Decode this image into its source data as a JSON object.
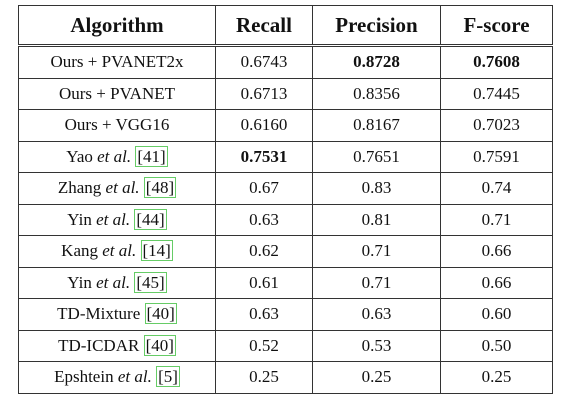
{
  "table": {
    "header": [
      "Algorithm",
      "Recall",
      "Precision",
      "F-score"
    ],
    "rows": [
      [
        {
          "text": "Ours + PVANET2x"
        },
        "0.6743",
        {
          "value": "0.8728",
          "bold": true
        },
        {
          "value": "0.7608",
          "bold": true
        }
      ],
      [
        {
          "text": "Ours + PVANET"
        },
        "0.6713",
        "0.8356",
        "0.7445"
      ],
      [
        {
          "text": "Ours + VGG16"
        },
        "0.6160",
        "0.8167",
        "0.7023"
      ],
      [
        {
          "text": "Yao",
          "italic": "et al.",
          "ref": "[41]"
        },
        {
          "value": "0.7531",
          "bold": true
        },
        "0.7651",
        "0.7591"
      ],
      [
        {
          "text": "Zhang",
          "italic": "et al.",
          "ref": "[48]"
        },
        "0.67",
        "0.83",
        "0.74"
      ],
      [
        {
          "text": "Yin",
          "italic": "et al.",
          "ref": "[44]"
        },
        "0.63",
        "0.81",
        "0.71"
      ],
      [
        {
          "text": "Kang",
          "italic": "et al.",
          "ref": "[14]"
        },
        "0.62",
        "0.71",
        "0.66"
      ],
      [
        {
          "text": "Yin",
          "italic": "et al.",
          "ref": "[45]"
        },
        "0.61",
        "0.71",
        "0.66"
      ],
      [
        {
          "text": "TD-Mixture",
          "ref": "[40]"
        },
        "0.63",
        "0.63",
        "0.60"
      ],
      [
        {
          "text": "TD-ICDAR",
          "ref": "[40]"
        },
        "0.52",
        "0.53",
        "0.50"
      ],
      [
        {
          "text": "Epshtein",
          "italic": "et al.",
          "ref": "[5]"
        },
        "0.25",
        "0.25",
        "0.25"
      ]
    ]
  }
}
